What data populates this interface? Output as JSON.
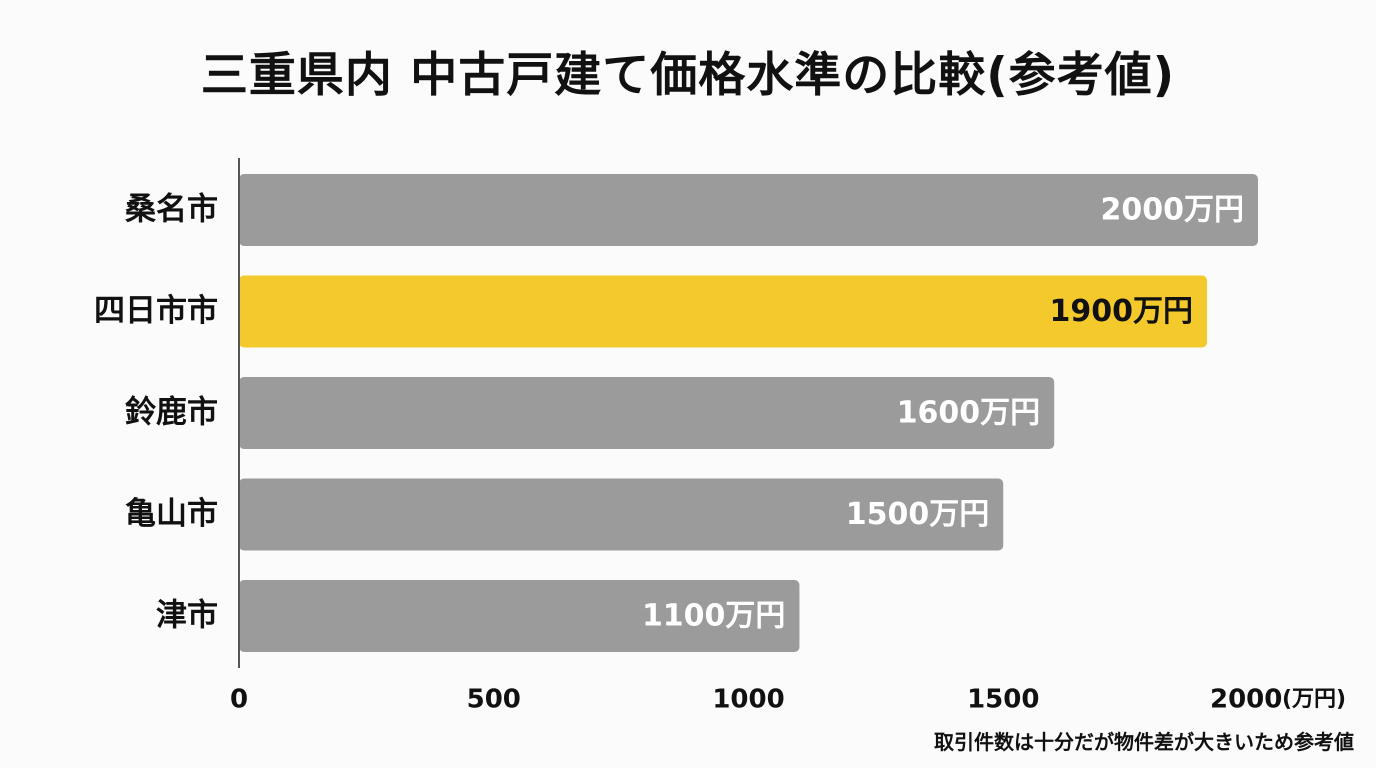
{
  "chart_data": {
    "type": "bar",
    "orientation": "horizontal",
    "title": "三重県内 中古戸建て価格水準の比較(参考値)",
    "categories": [
      "桑名市",
      "四日市市",
      "鈴鹿市",
      "亀山市",
      "津市"
    ],
    "values": [
      2000,
      1900,
      1600,
      1500,
      1100
    ],
    "value_labels": [
      "2000万円",
      "1900万円",
      "1600万円",
      "1500万円",
      "1100万円"
    ],
    "highlight_category": "四日市市",
    "xlim": [
      0,
      2000
    ],
    "x_ticks": [
      0,
      500,
      1000,
      1500,
      2000
    ],
    "x_tick_labels": [
      "0",
      "500",
      "1000",
      "1500",
      "2000"
    ],
    "x_unit": "(万円)",
    "grid": false,
    "legend": "none",
    "footnote": "取引件数は十分だが物件差が大きいため参考値"
  },
  "colors": {
    "bar_default": "#9b9b9b",
    "bar_highlight": "#f4c92b",
    "label_on_default": "#ffffff",
    "label_on_highlight": "#111111",
    "axis": "#555555",
    "text": "#111111"
  }
}
